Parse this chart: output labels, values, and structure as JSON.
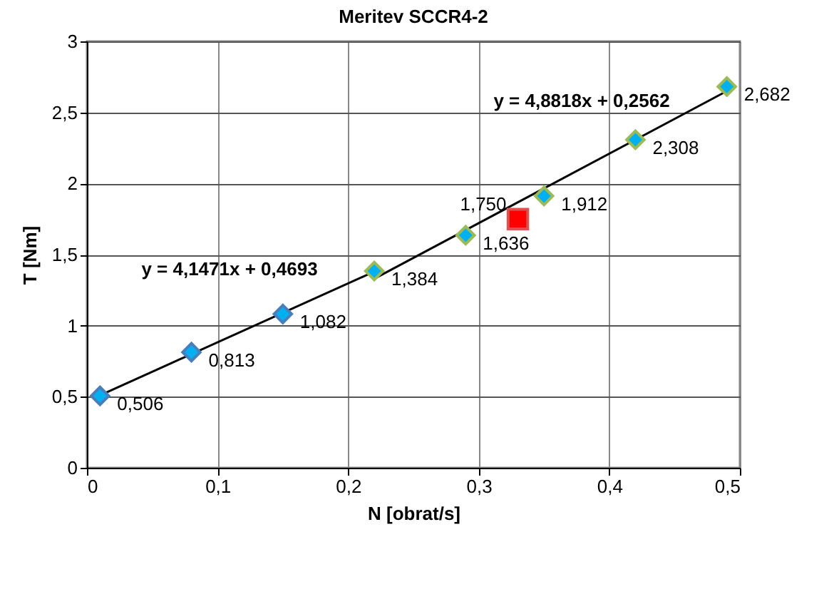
{
  "chart_data": {
    "type": "scatter",
    "title": "Meritev SCCR4-2",
    "xlabel": "N [obrat/s]",
    "ylabel": "T [Nm]",
    "xlim": [
      0,
      0.5
    ],
    "xticks": [
      {
        "value": 0,
        "label": "0"
      },
      {
        "value": 0.1,
        "label": "0,1"
      },
      {
        "value": 0.2,
        "label": "0,2"
      },
      {
        "value": 0.3,
        "label": "0,3"
      },
      {
        "value": 0.4,
        "label": "0,4"
      },
      {
        "value": 0.5,
        "label": "0,5"
      }
    ],
    "ylim": [
      0,
      3
    ],
    "yticks": [
      {
        "value": 0,
        "label": "0"
      },
      {
        "value": 0.5,
        "label": "0,5"
      },
      {
        "value": 1,
        "label": "1"
      },
      {
        "value": 1.5,
        "label": "1,5"
      },
      {
        "value": 2,
        "label": "2"
      },
      {
        "value": 2.5,
        "label": "2,5"
      },
      {
        "value": 3,
        "label": "3"
      }
    ],
    "grid": true,
    "series": [
      {
        "type": "line",
        "color": "#000000",
        "x": [
          0.01,
          0.22
        ],
        "values": [
          0.51,
          1.38
        ]
      },
      {
        "type": "line",
        "color": "#000000",
        "x": [
          0.22,
          0.49
        ],
        "values": [
          1.33,
          2.65
        ]
      },
      {
        "marker": "diamond",
        "color": "#00b0f0",
        "x": [
          0.01,
          0.08,
          0.15
        ],
        "values": [
          0.506,
          0.813,
          1.082
        ],
        "value_labels": [
          "0,506",
          "0,813",
          "1,082"
        ]
      },
      {
        "marker": "diamond",
        "color": "#00b0f0",
        "x": [
          0.22,
          0.29,
          0.35,
          0.42,
          0.49
        ],
        "values": [
          1.384,
          1.636,
          1.912,
          2.308,
          2.682
        ],
        "value_labels": [
          "1,384",
          "1,636",
          "1,912",
          "2,308",
          "2,682"
        ]
      },
      {
        "marker": "square",
        "color": "#ff0000",
        "x": [
          0.33
        ],
        "values": [
          1.75
        ],
        "value_labels": [
          "1,750"
        ]
      }
    ],
    "annotations": [
      "y = 4,1471x + 0,4693",
      "y = 4,8818x + 0,2562"
    ]
  }
}
